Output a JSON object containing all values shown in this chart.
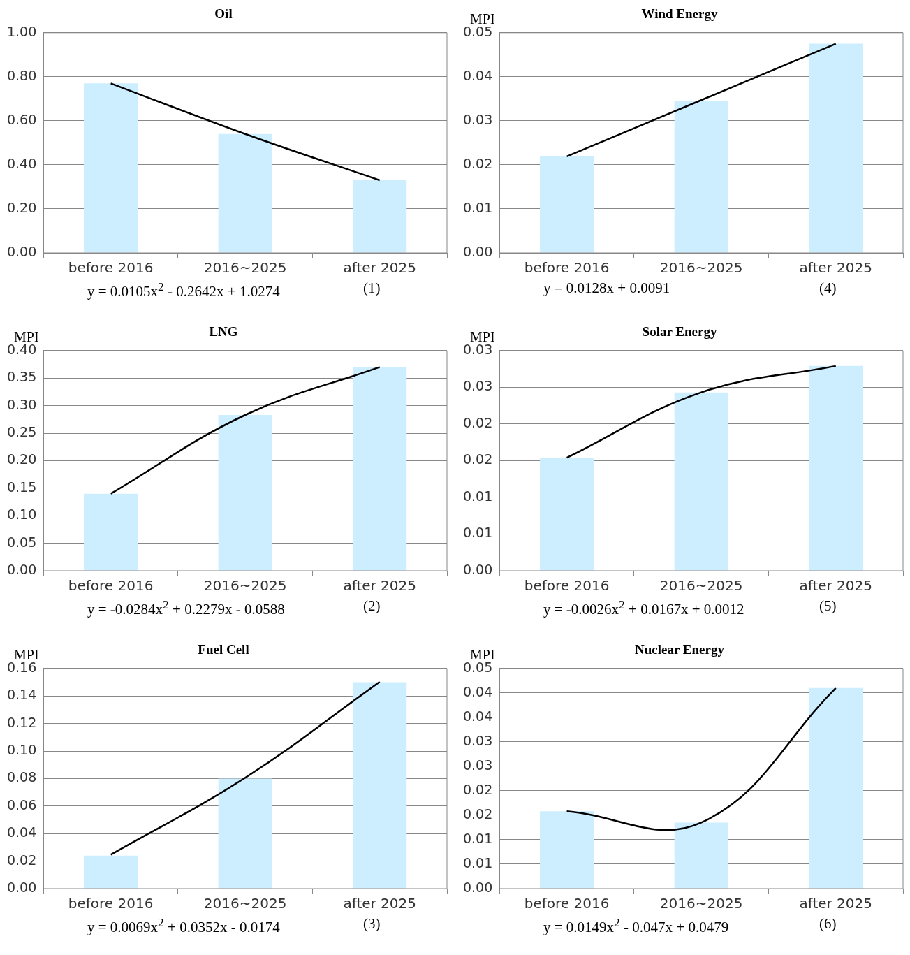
{
  "chart_data": [
    {
      "type": "bar",
      "title": "Oil",
      "categories": [
        "before 2016",
        "2016~2025",
        "after 2025"
      ],
      "series": [
        {
          "color": "#cceeff",
          "values": [
            0.77,
            0.54,
            0.33
          ]
        },
        {
          "type": "line",
          "color": "#000000",
          "values": [
            0.77,
            0.54,
            0.33
          ]
        }
      ],
      "ylim": [
        0,
        1
      ],
      "yticks": [
        {
          "value": 0,
          "label": "0.00"
        },
        {
          "value": 0.2,
          "label": "0.20"
        },
        {
          "value": 0.4,
          "label": "0.40"
        },
        {
          "value": 0.6,
          "label": "0.60"
        },
        {
          "value": 0.8,
          "label": "0.80"
        },
        {
          "value": 1,
          "label": "1.00"
        }
      ],
      "grid": "y",
      "legend": false,
      "marker": "none",
      "annotations": [
        "y = 0.0105x$^{2}$ - 0.2642x + 1.0274",
        "(1)"
      ]
    },
    {
      "type": "bar",
      "title": "Wind Energy",
      "ylabel": "MPI",
      "categories": [
        "before 2016",
        "2016~2025",
        "after 2025"
      ],
      "series": [
        {
          "color": "#cceeff",
          "values": [
            0.022,
            0.0345,
            0.0475
          ]
        },
        {
          "type": "line",
          "color": "#000000",
          "values": [
            0.0219,
            0.0347,
            0.0475
          ]
        }
      ],
      "ylim": [
        0,
        0.05
      ],
      "yticks": [
        {
          "value": 0,
          "label": "0.00"
        },
        0.01,
        0.02,
        0.03,
        0.04,
        0.05
      ],
      "grid": "y",
      "legend": false,
      "marker": "none",
      "annotations": [
        "y = 0.0128x + 0.0091",
        "(4)"
      ]
    },
    {
      "type": "bar",
      "title": "LNG",
      "ylabel": "MPI",
      "categories": [
        "before 2016",
        "2016~2025",
        "after 2025"
      ],
      "series": [
        {
          "color": "#cceeff",
          "values": [
            0.14,
            0.283,
            0.37
          ]
        },
        {
          "type": "line",
          "color": "#000000",
          "values": [
            0.14,
            0.283,
            0.37
          ]
        }
      ],
      "ylim": [
        0,
        0.4
      ],
      "yticks": [
        {
          "value": 0,
          "label": "0.00"
        },
        {
          "value": 0.05,
          "label": "0.05"
        },
        {
          "value": 0.1,
          "label": "0.10"
        },
        {
          "value": 0.15,
          "label": "0.15"
        },
        {
          "value": 0.2,
          "label": "0.20"
        },
        {
          "value": 0.25,
          "label": "0.25"
        },
        {
          "value": 0.3,
          "label": "0.30"
        },
        {
          "value": 0.35,
          "label": "0.35"
        },
        {
          "value": 0.4,
          "label": "0.40"
        }
      ],
      "grid": "y",
      "legend": false,
      "marker": "none",
      "annotations": [
        "y = -0.0284x$^{2}$ + 0.2279x - 0.0588",
        "(2)"
      ]
    },
    {
      "type": "bar",
      "title": "Solar Energy",
      "ylabel": "MPI",
      "categories": [
        "before 2016",
        "2016~2025",
        "after 2025"
      ],
      "series": [
        {
          "color": "#cceeff",
          "values": [
            0.0154,
            0.0243,
            0.0279
          ]
        },
        {
          "type": "line",
          "color": "#000000",
          "values": [
            0.0154,
            0.0243,
            0.0279
          ]
        }
      ],
      "ylim": [
        0,
        0.03
      ],
      "yticks": [
        {
          "value": 0,
          "label": "0.00"
        },
        {
          "value": 0.005,
          "label": "0.01"
        },
        {
          "value": 0.01,
          "label": "0.01"
        },
        {
          "value": 0.015,
          "label": "0.02"
        },
        {
          "value": 0.02,
          "label": "0.02"
        },
        {
          "value": 0.025,
          "label": "0.03"
        },
        {
          "value": 0.03,
          "label": "0.03"
        }
      ],
      "grid": "y",
      "legend": false,
      "marker": "none",
      "annotations": [
        "y = -0.0026x$^{2}$ + 0.0167x + 0.0012",
        "(5)"
      ]
    },
    {
      "type": "bar",
      "title": "Fuel Cell",
      "ylabel": "MPI",
      "categories": [
        "before 2016",
        "2016~2025",
        "after 2025"
      ],
      "series": [
        {
          "color": "#cceeff",
          "values": [
            0.024,
            0.08,
            0.15
          ]
        },
        {
          "type": "line",
          "color": "#000000",
          "values": [
            0.0247,
            0.0806,
            0.1503
          ]
        }
      ],
      "ylim": [
        0,
        0.16
      ],
      "yticks": [
        {
          "value": 0,
          "label": "0.00"
        },
        {
          "value": 0.02,
          "label": "0.02"
        },
        {
          "value": 0.04,
          "label": "0.04"
        },
        {
          "value": 0.06,
          "label": "0.06"
        },
        {
          "value": 0.08,
          "label": "0.08"
        },
        {
          "value": 0.1,
          "label": "0.10"
        },
        {
          "value": 0.12,
          "label": "0.12"
        },
        {
          "value": 0.14,
          "label": "0.14"
        },
        {
          "value": 0.16,
          "label": "0.16"
        }
      ],
      "grid": "y",
      "legend": false,
      "marker": "none",
      "annotations": [
        "y = 0.0069x$^{2}$ + 0.0352x - 0.0174",
        "(3)"
      ]
    },
    {
      "type": "bar",
      "title": "Nuclear Energy",
      "ylabel": "MPI",
      "categories": [
        "before 2016",
        "2016~2025",
        "after 2025"
      ],
      "series": [
        {
          "color": "#cceeff",
          "values": [
            0.0158,
            0.0135,
            0.041
          ]
        },
        {
          "type": "line",
          "color": "#000000",
          "values": [
            0.0158,
            0.0135,
            0.041
          ]
        }
      ],
      "ylim": [
        0,
        0.045
      ],
      "yticks": [
        {
          "value": 0,
          "label": "0.00"
        },
        {
          "value": 0.005,
          "label": "0.01"
        },
        {
          "value": 0.01,
          "label": "0.01"
        },
        {
          "value": 0.015,
          "label": "0.02"
        },
        {
          "value": 0.02,
          "label": "0.02"
        },
        {
          "value": 0.025,
          "label": "0.03"
        },
        {
          "value": 0.03,
          "label": "0.03"
        },
        {
          "value": 0.035,
          "label": "0.04"
        },
        {
          "value": 0.04,
          "label": "0.04"
        },
        {
          "value": 0.045,
          "label": "0.05"
        }
      ],
      "grid": "y",
      "legend": false,
      "marker": "none",
      "annotations": [
        "y = 0.0149x$^{2}$ - 0.047x + 0.0479",
        "(6)"
      ]
    }
  ]
}
